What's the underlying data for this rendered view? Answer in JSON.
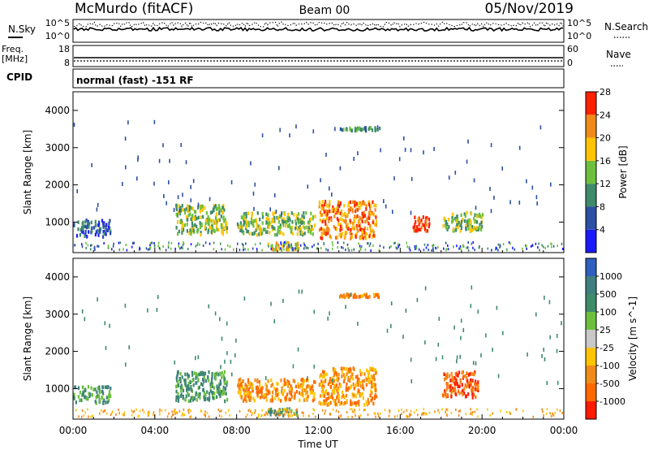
{
  "header": {
    "station": "McMurdo (fitACF)",
    "beam": "Beam 00",
    "date": "05/Nov/2019"
  },
  "noise_panel": {
    "left_label": "N.Sky",
    "right_label": "N.Search",
    "top_tick": "10^5",
    "bottom_tick": "10^0"
  },
  "freq_panel": {
    "left_label_1": "Freq.",
    "left_label_2": "[MHz]",
    "right_label": "Nave",
    "left_top_tick": "18",
    "left_bottom_tick": "8",
    "right_top_tick": "60",
    "right_bottom_tick": "0"
  },
  "cpid": {
    "label": "CPID",
    "mode": "normal (fast) -151 RF"
  },
  "chart_data": [
    {
      "type": "heatmap",
      "title": "Power [dB]",
      "xlabel": "",
      "ylabel": "Slant Range [km]",
      "x_ticks": [
        "00:00",
        "04:00",
        "08:00",
        "12:00",
        "16:00",
        "20:00",
        "00:00"
      ],
      "y_ticks": [
        "1000",
        "2000",
        "3000",
        "4000"
      ],
      "ylim": [
        180,
        4500
      ],
      "colorbar_ticks": [
        "4",
        "8",
        "12",
        "16",
        "20",
        "24",
        "28"
      ],
      "colorbar_colors": [
        "#1a1aff",
        "#2b4fa3",
        "#3e8a6a",
        "#6dc03d",
        "#ffc300",
        "#f08a1a",
        "#ff2200"
      ],
      "echo_regions": [
        {
          "t_start": 0.0,
          "t_end": 1.8,
          "r_min": 650,
          "r_max": 1100,
          "level": 1
        },
        {
          "t_start": 5.0,
          "t_end": 7.5,
          "r_min": 700,
          "r_max": 1500,
          "level": 3
        },
        {
          "t_start": 8.0,
          "t_end": 11.8,
          "r_min": 700,
          "r_max": 1300,
          "level": 3
        },
        {
          "t_start": 12.0,
          "t_end": 14.8,
          "r_min": 600,
          "r_max": 1600,
          "level": 5
        },
        {
          "t_start": 16.6,
          "t_end": 17.4,
          "r_min": 800,
          "r_max": 1200,
          "level": 6
        },
        {
          "t_start": 18.0,
          "t_end": 20.0,
          "r_min": 800,
          "r_max": 1300,
          "level": 3
        },
        {
          "t_start": 9.5,
          "t_end": 11.0,
          "r_min": 300,
          "r_max": 500,
          "level": 4
        },
        {
          "t_start": 13.0,
          "t_end": 15.0,
          "r_min": 3500,
          "r_max": 3580,
          "level": 2
        }
      ]
    },
    {
      "type": "heatmap",
      "title": "Velocity [m s^-1]",
      "xlabel": "Time UT",
      "ylabel": "Slant Range [km]",
      "x_ticks": [
        "00:00",
        "04:00",
        "08:00",
        "12:00",
        "16:00",
        "20:00",
        "00:00"
      ],
      "y_ticks": [
        "1000",
        "2000",
        "3000",
        "4000"
      ],
      "ylim": [
        180,
        4500
      ],
      "colorbar_ticks": [
        "1000",
        "500",
        "100",
        "25",
        "-25",
        "-100",
        "-500",
        "-1000"
      ],
      "colorbar_colors": [
        "#2f5fbf",
        "#3f7f7f",
        "#3e8a6a",
        "#6dc03d",
        "#c8c8c8",
        "#ffc300",
        "#f08a1a",
        "#ff6a00",
        "#ff1a00"
      ],
      "echo_regions": [
        {
          "t_start": 0.0,
          "t_end": 1.8,
          "r_min": 650,
          "r_max": 1100,
          "level": 2
        },
        {
          "t_start": 5.0,
          "t_end": 7.5,
          "r_min": 700,
          "r_max": 1500,
          "level": 2
        },
        {
          "t_start": 8.0,
          "t_end": 11.8,
          "r_min": 700,
          "r_max": 1300,
          "level": 6
        },
        {
          "t_start": 12.0,
          "t_end": 14.8,
          "r_min": 600,
          "r_max": 1600,
          "level": 6
        },
        {
          "t_start": 18.0,
          "t_end": 19.8,
          "r_min": 800,
          "r_max": 1500,
          "level": 7
        },
        {
          "t_start": 9.5,
          "t_end": 11.0,
          "r_min": 300,
          "r_max": 500,
          "level": 2
        },
        {
          "t_start": 13.0,
          "t_end": 15.0,
          "r_min": 3500,
          "r_max": 3580,
          "level": 6
        }
      ]
    }
  ]
}
